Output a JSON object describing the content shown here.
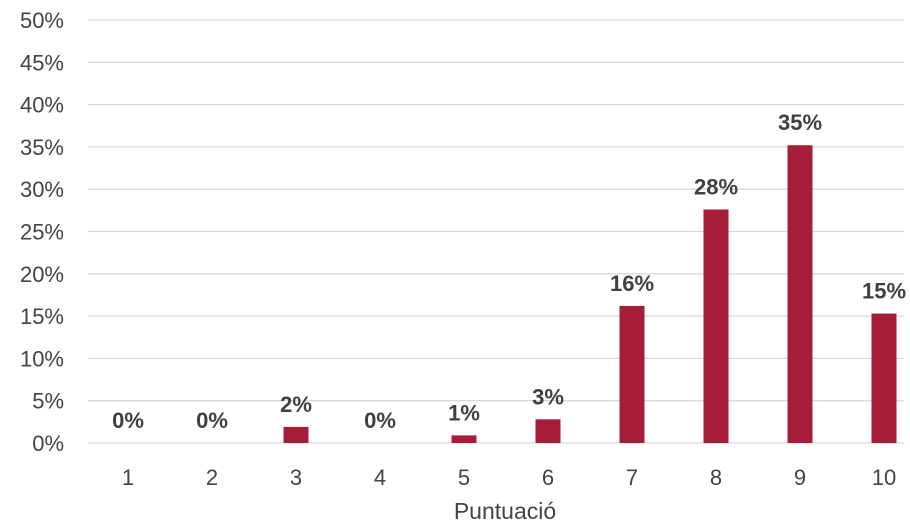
{
  "chart_data": {
    "type": "bar",
    "title": "",
    "xlabel": "Puntuació",
    "ylabel": "",
    "categories": [
      "1",
      "2",
      "3",
      "4",
      "5",
      "6",
      "7",
      "8",
      "9",
      "10"
    ],
    "values": [
      0,
      0,
      2,
      0,
      1,
      3,
      16,
      28,
      35,
      15
    ],
    "data_labels": [
      "0%",
      "0%",
      "2%",
      "0%",
      "1%",
      "3%",
      "16%",
      "28%",
      "35%",
      "15%"
    ],
    "bar_values_precise": [
      0,
      0,
      1.9,
      0,
      0.9,
      2.8,
      16.2,
      27.6,
      35.2,
      15.3
    ],
    "ylim": [
      0,
      50
    ],
    "y_ticks": [
      0,
      5,
      10,
      15,
      20,
      25,
      30,
      35,
      40,
      45,
      50
    ],
    "y_tick_labels": [
      "0%",
      "5%",
      "10%",
      "15%",
      "20%",
      "25%",
      "30%",
      "35%",
      "40%",
      "45%",
      "50%"
    ],
    "grid": true,
    "legend": "none",
    "bar_color": "#a51d36"
  }
}
